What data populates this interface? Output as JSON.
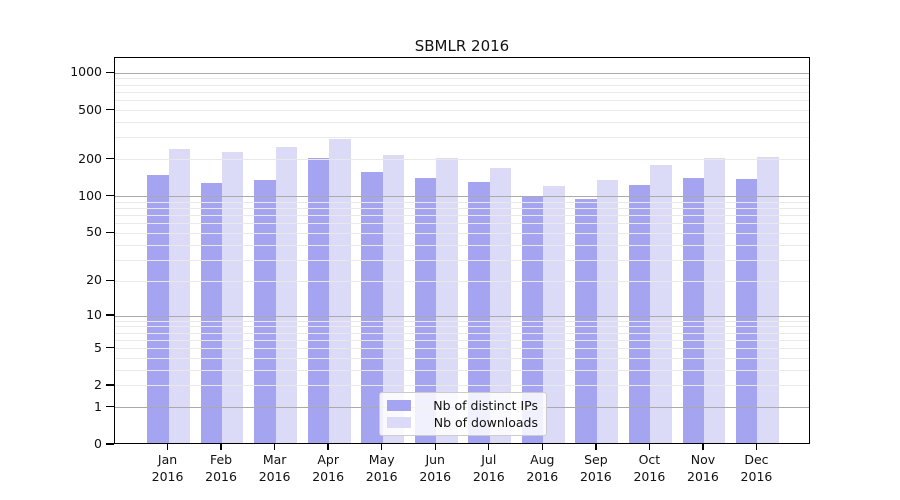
{
  "chart_data": {
    "type": "bar",
    "title": "SBMLR 2016",
    "categories": [
      "Jan",
      "Feb",
      "Mar",
      "Apr",
      "May",
      "Jun",
      "Jul",
      "Aug",
      "Sep",
      "Oct",
      "Nov",
      "Dec"
    ],
    "category_year": "2016",
    "series": [
      {
        "name": "Nb of distinct IPs",
        "color": "#a4a4f1",
        "values": [
          150,
          129,
          137,
          208,
          160,
          143,
          133,
          100,
          95,
          124,
          142,
          139
        ]
      },
      {
        "name": "Nb of downloads",
        "color": "#dbdbf8",
        "values": [
          242,
          231,
          255,
          296,
          219,
          206,
          170,
          123,
          136,
          181,
          205,
          212
        ]
      }
    ],
    "y_ticks": [
      0,
      1,
      2,
      5,
      10,
      20,
      50,
      100,
      200,
      500,
      1000
    ],
    "y_scale": "log10(1+x)",
    "ylim": [
      0,
      1330
    ],
    "xlabel": "",
    "ylabel": "",
    "grid": true,
    "legend_position": "lower center",
    "grid_major_color": "#aaaaaa",
    "grid_minor_color": "#e9e9e9",
    "axis_color": "#000000"
  }
}
